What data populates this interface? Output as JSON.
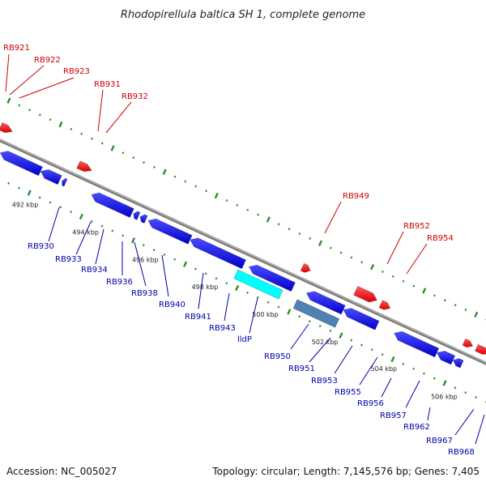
{
  "title": "Rhodopirellula baltica SH 1, complete genome",
  "footer": {
    "accession": "Accession: NC_005027",
    "summary": "Topology: circular; Length: 7,145,576 bp; Genes: 7,405"
  },
  "colors": {
    "forward_gene": "#ff0000",
    "reverse_gene": "#0000ff",
    "highlight_gene": "#00ffff",
    "rna_gene": "#4f81b3",
    "backbone": "#888888",
    "ticks": "#2e8b2e",
    "forward_label": "#cc0000",
    "reverse_label": "#0000aa"
  },
  "scale_ticks": [
    "492 kbp",
    "494 kbp",
    "496 kbp",
    "498 kbp",
    "500 kbp",
    "502 kbp",
    "504 kbp",
    "506 kbp"
  ],
  "top_labels": [
    "RB921",
    "RB922",
    "RB923",
    "RB931",
    "RB932",
    "RB949",
    "RB952",
    "RB954"
  ],
  "bottom_labels": [
    "RB930",
    "RB933",
    "RB934",
    "RB936",
    "RB938",
    "RB940",
    "RB941",
    "RB943",
    "lldP",
    "RB950",
    "RB951",
    "RB953",
    "RB955",
    "RB956",
    "RB957",
    "RB962",
    "RB967",
    "RB968"
  ]
}
